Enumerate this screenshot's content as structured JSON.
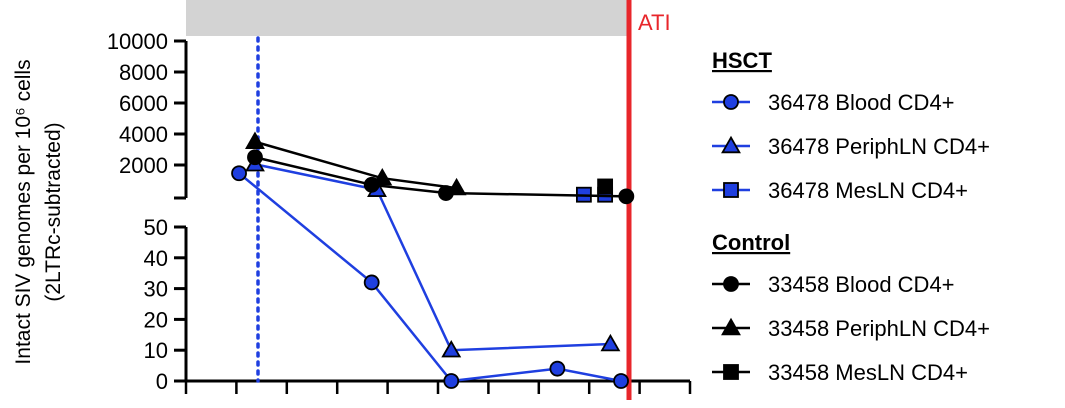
{
  "chart_data": {
    "type": "line",
    "ylabel_line1": "Intact SIV genomes per 10⁶ cells",
    "ylabel_line2": "(2LTRc-subtracted)",
    "ati_label": "ATI",
    "yticks_upper": [
      "10000",
      "8000",
      "6000",
      "4000",
      "2000"
    ],
    "yticks_lower": [
      "50",
      "40",
      "30",
      "20",
      "10",
      "0"
    ],
    "ylim_upper": [
      0,
      10000
    ],
    "ylim_lower": [
      0,
      50
    ],
    "grid": false,
    "legend_position": "right",
    "legend_groups": [
      {
        "title": "HSCT",
        "entries": [
          {
            "label": "36478 Blood CD4+",
            "marker": "circle"
          },
          {
            "label": "36478 PeriphLN CD4+",
            "marker": "triangle"
          },
          {
            "label": "36478 MesLN CD4+",
            "marker": "square"
          }
        ]
      },
      {
        "title": "Control",
        "entries": [
          {
            "label": "33458 Blood CD4+",
            "marker": "circle"
          },
          {
            "label": "33458 PeriphLN CD4+",
            "marker": "triangle"
          },
          {
            "label": "33458 MesLN CD4+",
            "marker": "square"
          }
        ]
      }
    ],
    "colors": {
      "hsct": "#1f3fe0",
      "control": "#000000",
      "ati_line": "#e8262b",
      "shade": "#d3d3d3",
      "dotted_line": "#1f3fe0"
    },
    "series": [
      {
        "name": "36478 Blood CD4+",
        "group": "hsct",
        "marker": "circle",
        "line": true,
        "points": [
          [
            1,
            1500
          ],
          [
            3.5,
            32
          ],
          [
            5,
            0
          ],
          [
            7,
            4
          ],
          [
            8.2,
            0
          ]
        ]
      },
      {
        "name": "36478 PeriphLN CD4+",
        "group": "hsct",
        "marker": "triangle",
        "line": true,
        "points": [
          [
            1.3,
            2050
          ],
          [
            3.6,
            500
          ],
          [
            5,
            10
          ],
          [
            8,
            12
          ]
        ]
      },
      {
        "name": "36478 MesLN CD4+",
        "group": "hsct",
        "marker": "square",
        "line": false,
        "points": [
          [
            7.5,
            200
          ],
          [
            7.9,
            200
          ]
        ]
      },
      {
        "name": "33458 Blood CD4+",
        "group": "control",
        "marker": "circle",
        "line": true,
        "points": [
          [
            1.3,
            2500
          ],
          [
            3.5,
            800
          ],
          [
            4.9,
            300
          ],
          [
            8.3,
            100
          ]
        ]
      },
      {
        "name": "33458 PeriphLN CD4+",
        "group": "control",
        "marker": "triangle",
        "line": true,
        "points": [
          [
            1.3,
            3500
          ],
          [
            3.7,
            1200
          ],
          [
            5.1,
            600
          ]
        ]
      },
      {
        "name": "33458 MesLN CD4+",
        "group": "control",
        "marker": "square",
        "line": false,
        "points": [
          [
            7.9,
            700
          ]
        ]
      }
    ]
  }
}
